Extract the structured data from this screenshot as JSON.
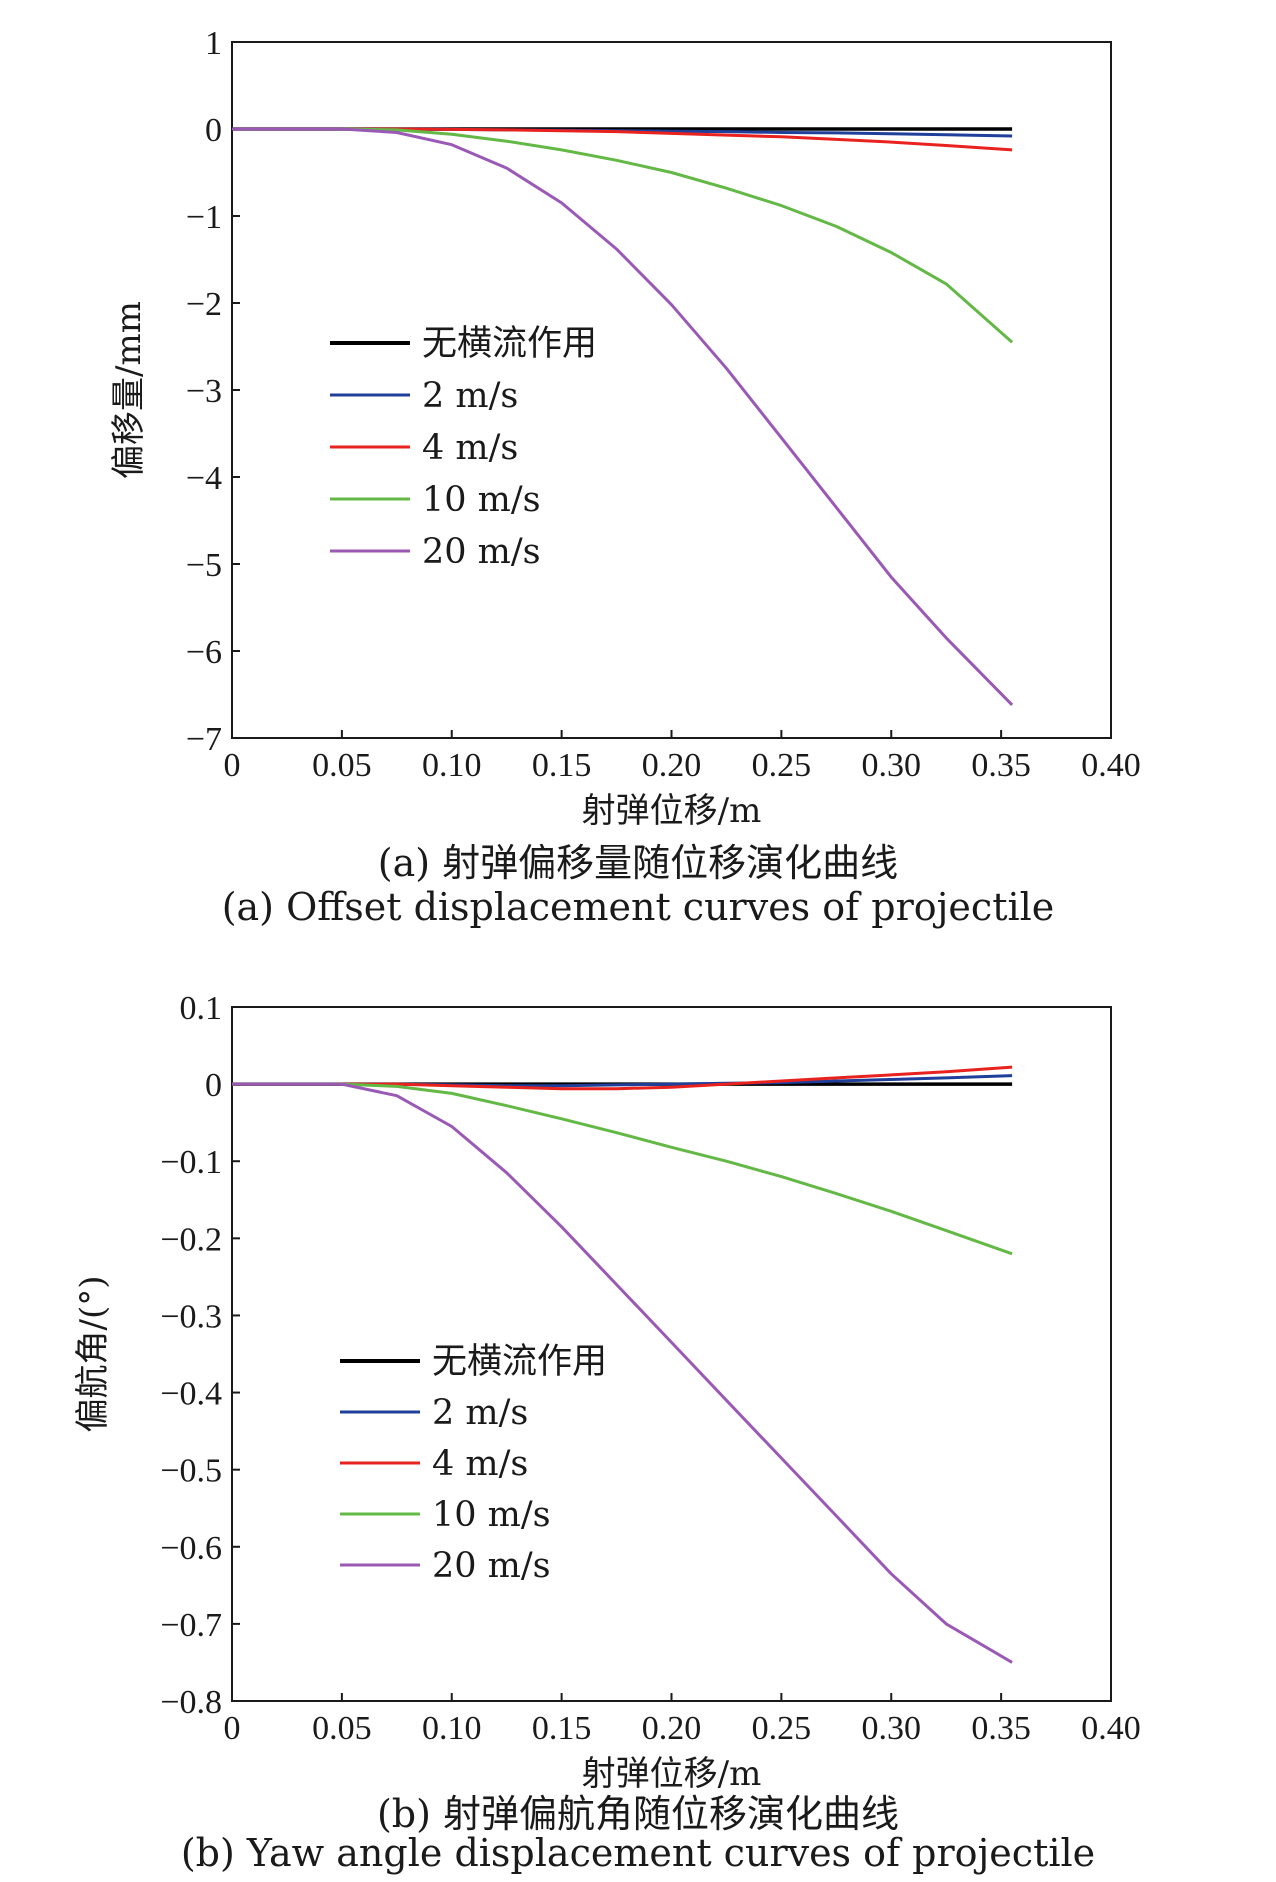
{
  "chart_data": [
    {
      "type": "line",
      "xlabel": "射弹位移/m",
      "ylabel": "偏移量/mm",
      "xlim": [
        0,
        0.4
      ],
      "ylim": [
        -7,
        1
      ],
      "xticks": [
        "0",
        "0.05",
        "0.10",
        "0.15",
        "0.20",
        "0.25",
        "0.30",
        "0.35",
        "0.40"
      ],
      "yticks": [
        "1",
        "0",
        "−1",
        "−2",
        "−3",
        "−4",
        "−5",
        "−6",
        "−7"
      ],
      "legend_position": "center-left",
      "x": [
        0,
        0.05,
        0.075,
        0.1,
        0.125,
        0.15,
        0.175,
        0.2,
        0.225,
        0.25,
        0.275,
        0.3,
        0.325,
        0.355
      ],
      "series": [
        {
          "name": "无横流作用",
          "color": "#000000",
          "values": [
            0,
            0,
            0,
            0,
            0,
            0,
            0,
            0,
            0,
            0,
            0,
            0,
            0,
            0
          ]
        },
        {
          "name": "2 m/s",
          "color": "#1f3f9a",
          "values": [
            0,
            0,
            0,
            -0.005,
            -0.01,
            -0.015,
            -0.02,
            -0.025,
            -0.03,
            -0.04,
            -0.045,
            -0.055,
            -0.065,
            -0.08
          ]
        },
        {
          "name": "4 m/s",
          "color": "#e8231f",
          "values": [
            0,
            0,
            0,
            -0.005,
            -0.01,
            -0.02,
            -0.03,
            -0.05,
            -0.07,
            -0.09,
            -0.12,
            -0.15,
            -0.19,
            -0.24
          ]
        },
        {
          "name": "10 m/s",
          "color": "#63b846",
          "values": [
            0,
            0,
            -0.01,
            -0.06,
            -0.14,
            -0.24,
            -0.36,
            -0.5,
            -0.68,
            -0.88,
            -1.12,
            -1.42,
            -1.78,
            -2.45
          ]
        },
        {
          "name": "20 m/s",
          "color": "#9b59b6",
          "values": [
            0,
            0,
            -0.04,
            -0.18,
            -0.45,
            -0.85,
            -1.38,
            -2.02,
            -2.75,
            -3.55,
            -4.35,
            -5.15,
            -5.85,
            -6.62
          ]
        }
      ],
      "caption_zh": "(a) 射弹偏移量随位移演化曲线",
      "caption_en": "(a) Offset displacement curves of projectile"
    },
    {
      "type": "line",
      "xlabel": "射弹位移/m",
      "ylabel": "偏航角/(°)",
      "xlim": [
        0,
        0.4
      ],
      "ylim": [
        -0.8,
        0.1
      ],
      "xticks": [
        "0",
        "0.05",
        "0.10",
        "0.15",
        "0.20",
        "0.25",
        "0.30",
        "0.35",
        "0.40"
      ],
      "yticks": [
        "0.1",
        "0",
        "−0.1",
        "−0.2",
        "−0.3",
        "−0.4",
        "−0.5",
        "−0.6",
        "−0.7",
        "−0.8"
      ],
      "legend_position": "center-left",
      "x": [
        0,
        0.05,
        0.075,
        0.1,
        0.125,
        0.15,
        0.175,
        0.2,
        0.225,
        0.25,
        0.275,
        0.3,
        0.325,
        0.355
      ],
      "series": [
        {
          "name": "无横流作用",
          "color": "#000000",
          "values": [
            0,
            0,
            0,
            0,
            0,
            0,
            0,
            0,
            0,
            0,
            0,
            0,
            0,
            0
          ]
        },
        {
          "name": "2 m/s",
          "color": "#1f3f9a",
          "values": [
            0,
            0,
            0,
            -0.001,
            -0.002,
            -0.002,
            -0.001,
            0,
            0.001,
            0.002,
            0.004,
            0.006,
            0.008,
            0.011
          ]
        },
        {
          "name": "4 m/s",
          "color": "#e8231f",
          "values": [
            0,
            0,
            0,
            -0.002,
            -0.004,
            -0.006,
            -0.006,
            -0.004,
            0,
            0.004,
            0.008,
            0.012,
            0.016,
            0.022
          ]
        },
        {
          "name": "10 m/s",
          "color": "#63b846",
          "values": [
            0,
            0,
            -0.003,
            -0.012,
            -0.028,
            -0.045,
            -0.063,
            -0.082,
            -0.1,
            -0.12,
            -0.142,
            -0.165,
            -0.19,
            -0.22
          ]
        },
        {
          "name": "20 m/s",
          "color": "#9b59b6",
          "values": [
            0,
            0,
            -0.015,
            -0.055,
            -0.115,
            -0.185,
            -0.26,
            -0.335,
            -0.41,
            -0.485,
            -0.56,
            -0.635,
            -0.7,
            -0.75
          ]
        }
      ],
      "caption_zh": "(b) 射弹偏航角随位移演化曲线",
      "caption_en": "(b) Yaw angle displacement curves of projectile"
    }
  ]
}
